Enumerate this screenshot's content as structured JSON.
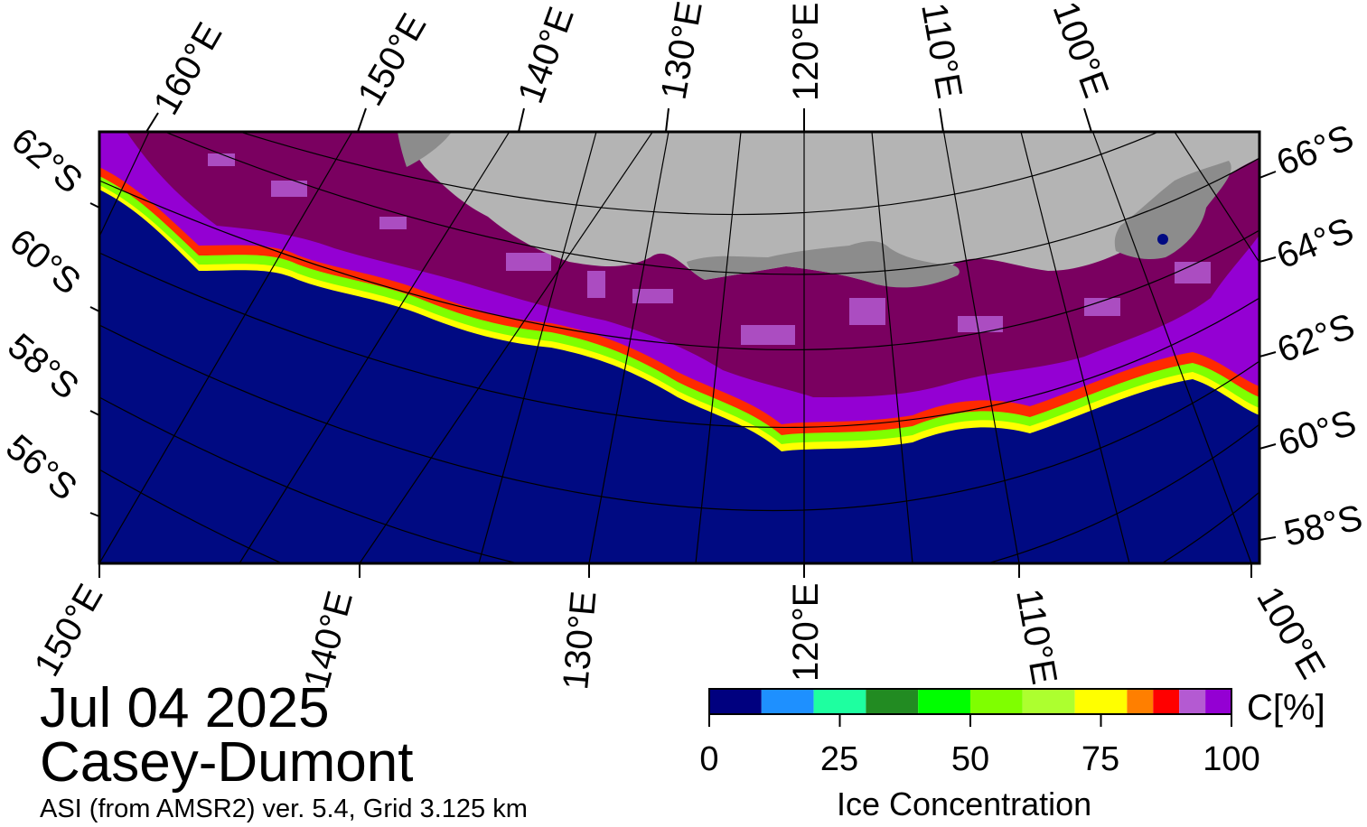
{
  "title": {
    "date": "Jul 04 2025",
    "region": "Casey-Dumont",
    "subtitle": "ASI (from AMSR2) ver. 5.4,  Grid 3.125 km"
  },
  "map": {
    "projection_grid_top_labels": [
      "160°E",
      "150°E",
      "140°E",
      "130°E",
      "120°E",
      "110°E",
      "100°E"
    ],
    "projection_grid_bottom_labels": [
      "150°E",
      "140°E",
      "130°E",
      "120°E",
      "110°E",
      "100°E"
    ],
    "lat_labels_left": [
      "62°S",
      "60°S",
      "58°S",
      "56°S"
    ],
    "lat_labels_right": [
      "66°S",
      "64°S",
      "62°S",
      "60°S",
      "58°S"
    ],
    "colors": {
      "open_water": "#000a82",
      "land": "#b4b4b4",
      "ice_shelf": "#8c8c8c",
      "ice_high": "#7a0060"
    }
  },
  "colorbar": {
    "label": "Ice Concentration",
    "unit": "C[%]",
    "ticks": [
      "0",
      "25",
      "50",
      "75",
      "100"
    ],
    "colors": [
      "#00007f",
      "#1e90ff",
      "#1effa0",
      "#228b22",
      "#00ff00",
      "#7fff00",
      "#adff2f",
      "#ffff00",
      "#ff7f00",
      "#ff0000",
      "#b45ad2",
      "#9400d3"
    ]
  }
}
